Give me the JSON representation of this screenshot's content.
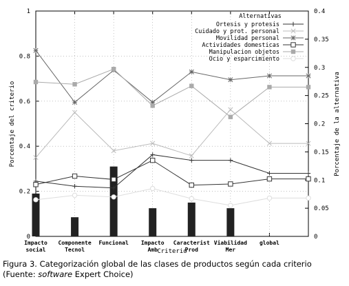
{
  "chart_data": {
    "type": "line",
    "title": "",
    "xlabel": "Criterio",
    "ylabel": "Porcentaje del criterio",
    "y2label": "Porcentaje de la alternativa",
    "ylim": [
      0,
      1
    ],
    "y2lim": [
      0,
      0.4
    ],
    "yticks": [
      "0",
      "0.2",
      "0.4",
      "0.6",
      "0.8",
      "1"
    ],
    "y2ticks": [
      "0",
      "0.05",
      "0.1",
      "0.15",
      "0.2",
      "0.25",
      "0.3",
      "0.35",
      "0.4"
    ],
    "categories": [
      [
        "Impacto",
        "social"
      ],
      [
        "Componente",
        "Tecnol"
      ],
      [
        "Funcional"
      ],
      [
        "Impacto",
        "Amb"
      ],
      [
        "Caracterist",
        "Prod"
      ],
      [
        "Viabilidad",
        "Mer"
      ],
      [
        "global"
      ]
    ],
    "bars": {
      "axis": "left",
      "color": "#222222",
      "values": [
        0.19,
        0.085,
        0.31,
        0.125,
        0.15,
        0.125,
        null
      ]
    },
    "legend": {
      "title": "Alternativas",
      "position": "top-right"
    },
    "series": [
      {
        "name": "Ortesis y protesis",
        "axis": "right",
        "color": "#333333",
        "marker": "plus",
        "values": [
          0.098,
          0.089,
          0.086,
          0.145,
          0.135,
          0.135,
          0.112
        ]
      },
      {
        "name": "Cuidado y prot. personal",
        "axis": "right",
        "color": "#bbbbbb",
        "marker": "cross",
        "values": [
          0.14,
          0.22,
          0.152,
          0.165,
          0.143,
          0.225,
          0.165
        ]
      },
      {
        "name": "Movilidad personal",
        "axis": "right",
        "color": "#666666",
        "marker": "star",
        "values": [
          0.33,
          0.238,
          0.295,
          0.238,
          0.292,
          0.278,
          0.285
        ]
      },
      {
        "name": "Actividades domesticas",
        "axis": "right",
        "color": "#333333",
        "marker": "square-open",
        "values": [
          0.092,
          0.107,
          0.101,
          0.135,
          0.091,
          0.093,
          0.102
        ]
      },
      {
        "name": "Manipulacion objetos",
        "axis": "right",
        "color": "#aaaaaa",
        "marker": "square-filled",
        "values": [
          0.274,
          0.27,
          0.297,
          0.232,
          0.267,
          0.212,
          0.265
        ]
      },
      {
        "name": "Ocio y esparcimiento",
        "axis": "right",
        "color": "#dddddd",
        "marker": "circle-open",
        "values": [
          0.065,
          0.073,
          0.07,
          0.085,
          0.067,
          0.055,
          0.068
        ]
      }
    ]
  },
  "caption": {
    "line1": "Figura 3. Categorización global de las clases de productos según cada criterio",
    "line2_pre": "(Fuente: ",
    "line2_em": "software",
    "line2_post": " Expert Choice)"
  }
}
